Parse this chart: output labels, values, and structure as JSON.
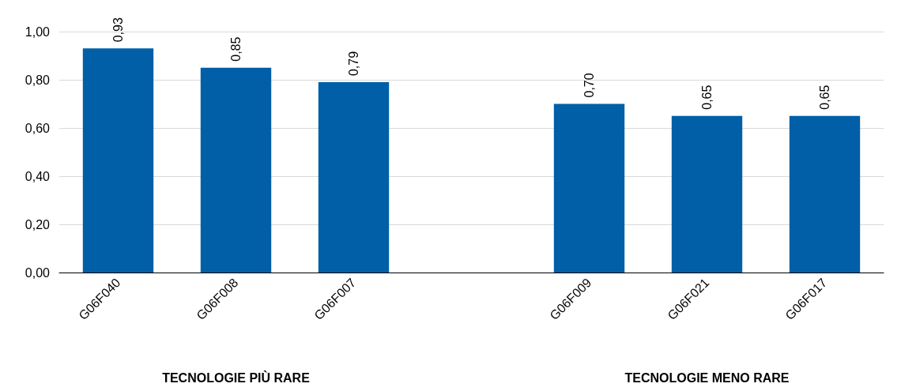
{
  "chart_data": {
    "type": "bar",
    "categories": [
      "G06F040",
      "G06F008",
      "G06F007",
      null,
      "G06F009",
      "G06F021",
      "G06F017"
    ],
    "values": [
      0.93,
      0.85,
      0.79,
      null,
      0.7,
      0.65,
      0.65
    ],
    "value_labels": [
      "0,93",
      "0,85",
      "0,79",
      null,
      "0,70",
      "0,65",
      "0,65"
    ],
    "color": "#005fa7",
    "ylim": [
      0,
      1
    ],
    "yticks": [
      {
        "value": 0,
        "label": "0,00"
      },
      {
        "value": 0.2,
        "label": "0,20"
      },
      {
        "value": 0.4,
        "label": "0,40"
      },
      {
        "value": 0.6,
        "label": "0,60"
      },
      {
        "value": 0.8,
        "label": "0,80"
      },
      {
        "value": 1,
        "label": "1,00"
      }
    ],
    "grid": "y",
    "annotations": [
      "TECNOLOGIE PIÙ RARE",
      "TECNOLOGIE MENO RARE"
    ]
  }
}
